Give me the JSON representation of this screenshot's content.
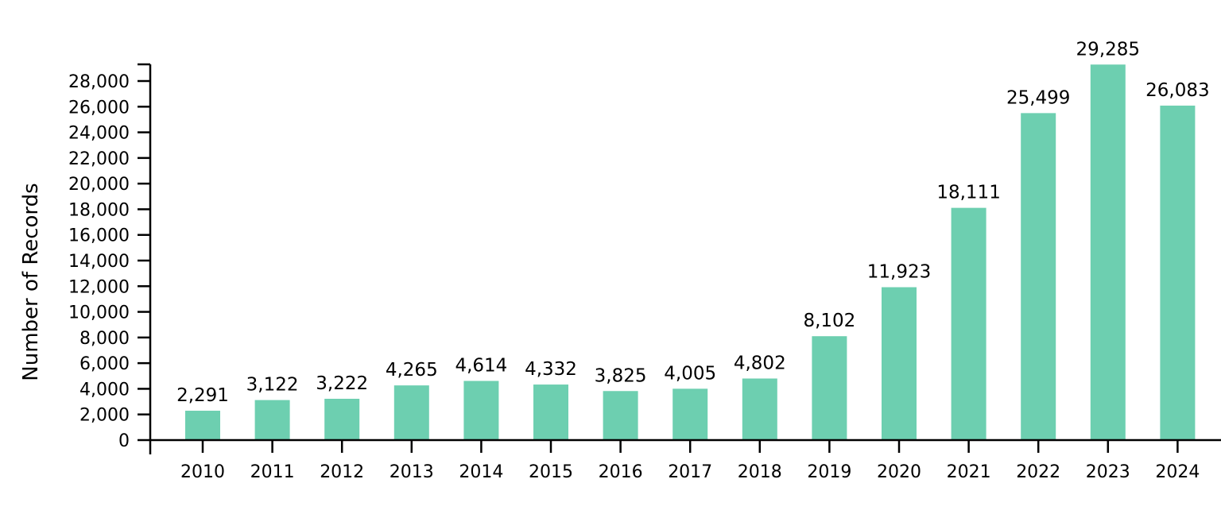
{
  "chart_data": {
    "type": "bar",
    "title": "",
    "xlabel": "",
    "ylabel": "Number of Records",
    "categories": [
      "2010",
      "2011",
      "2012",
      "2013",
      "2014",
      "2015",
      "2016",
      "2017",
      "2018",
      "2019",
      "2020",
      "2021",
      "2022",
      "2023",
      "2024"
    ],
    "values": [
      2291,
      3122,
      3222,
      4265,
      4614,
      4332,
      3825,
      4005,
      4802,
      8102,
      11923,
      18111,
      25499,
      29285,
      26083
    ],
    "value_labels": [
      "2,291",
      "3,122",
      "3,222",
      "4,265",
      "4,614",
      "4,332",
      "3,825",
      "4,005",
      "4,802",
      "8,102",
      "11,923",
      "18,111",
      "25,499",
      "29,285",
      "26,083"
    ],
    "yticks": [
      0,
      2000,
      4000,
      6000,
      8000,
      10000,
      12000,
      14000,
      16000,
      18000,
      20000,
      22000,
      24000,
      26000,
      28000
    ],
    "ytick_labels": [
      "0",
      "2,000",
      "4,000",
      "6,000",
      "8,000",
      "10,000",
      "12,000",
      "14,000",
      "16,000",
      "18,000",
      "20,000",
      "22,000",
      "24,000",
      "26,000",
      "28,000"
    ],
    "ylim": [
      0,
      29285
    ],
    "grid": false,
    "legend": null,
    "bar_color": "#6dcfb0"
  }
}
